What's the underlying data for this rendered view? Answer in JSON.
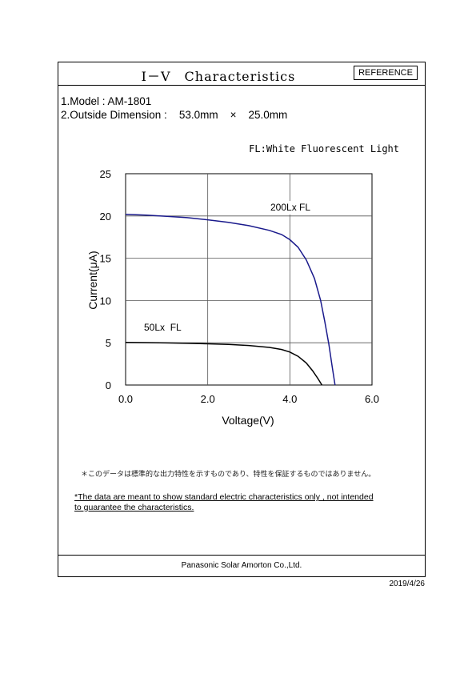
{
  "header": {
    "title": "I－V　Characteristics",
    "reference_label": "REFERENCE"
  },
  "specs": {
    "model_line": "1.Model : AM-1801",
    "dimension_line": "2.Outside Dimension :    53.0mm    ×    25.0mm"
  },
  "chart_data": {
    "type": "line",
    "light_source_note": "FL:White Fluorescent Light",
    "xlabel": "Voltage(V)",
    "ylabel": "Current(μA)",
    "xlim": [
      0,
      6
    ],
    "ylim": [
      0,
      25
    ],
    "x_ticks": [
      "0.0",
      "2.0",
      "4.0",
      "6.0"
    ],
    "y_ticks": [
      "0",
      "5",
      "10",
      "15",
      "20",
      "25"
    ],
    "grid": true,
    "series": [
      {
        "name": "200Lx FL",
        "color": "#1a1a8c",
        "points": [
          [
            0.0,
            20.2
          ],
          [
            0.5,
            20.1
          ],
          [
            1.0,
            19.95
          ],
          [
            1.5,
            19.8
          ],
          [
            2.0,
            19.55
          ],
          [
            2.5,
            19.25
          ],
          [
            3.0,
            18.85
          ],
          [
            3.5,
            18.3
          ],
          [
            3.8,
            17.8
          ],
          [
            4.0,
            17.2
          ],
          [
            4.2,
            16.3
          ],
          [
            4.4,
            14.8
          ],
          [
            4.6,
            12.6
          ],
          [
            4.75,
            10.0
          ],
          [
            4.85,
            7.5
          ],
          [
            4.95,
            4.8
          ],
          [
            5.03,
            2.2
          ],
          [
            5.1,
            0.0
          ]
        ]
      },
      {
        "name": "50Lx  FL",
        "color": "#000000",
        "points": [
          [
            0.0,
            5.05
          ],
          [
            0.5,
            5.02
          ],
          [
            1.0,
            4.98
          ],
          [
            1.5,
            4.93
          ],
          [
            2.0,
            4.88
          ],
          [
            2.5,
            4.8
          ],
          [
            3.0,
            4.68
          ],
          [
            3.5,
            4.45
          ],
          [
            3.8,
            4.2
          ],
          [
            4.0,
            3.9
          ],
          [
            4.2,
            3.4
          ],
          [
            4.4,
            2.6
          ],
          [
            4.55,
            1.7
          ],
          [
            4.68,
            0.8
          ],
          [
            4.78,
            0.0
          ]
        ]
      }
    ]
  },
  "notes": {
    "jp": "＊このデータは標準的な出力特性を示すものであり、特性を保証するものではありません。",
    "en_line1": "*The data are meant to show standard electric characteristics only , not  intended",
    "en_line2": " to guarantee the characteristics."
  },
  "footer": {
    "company": "Panasonic Solar Amorton Co.,Ltd.",
    "date": "2019/4/26"
  }
}
